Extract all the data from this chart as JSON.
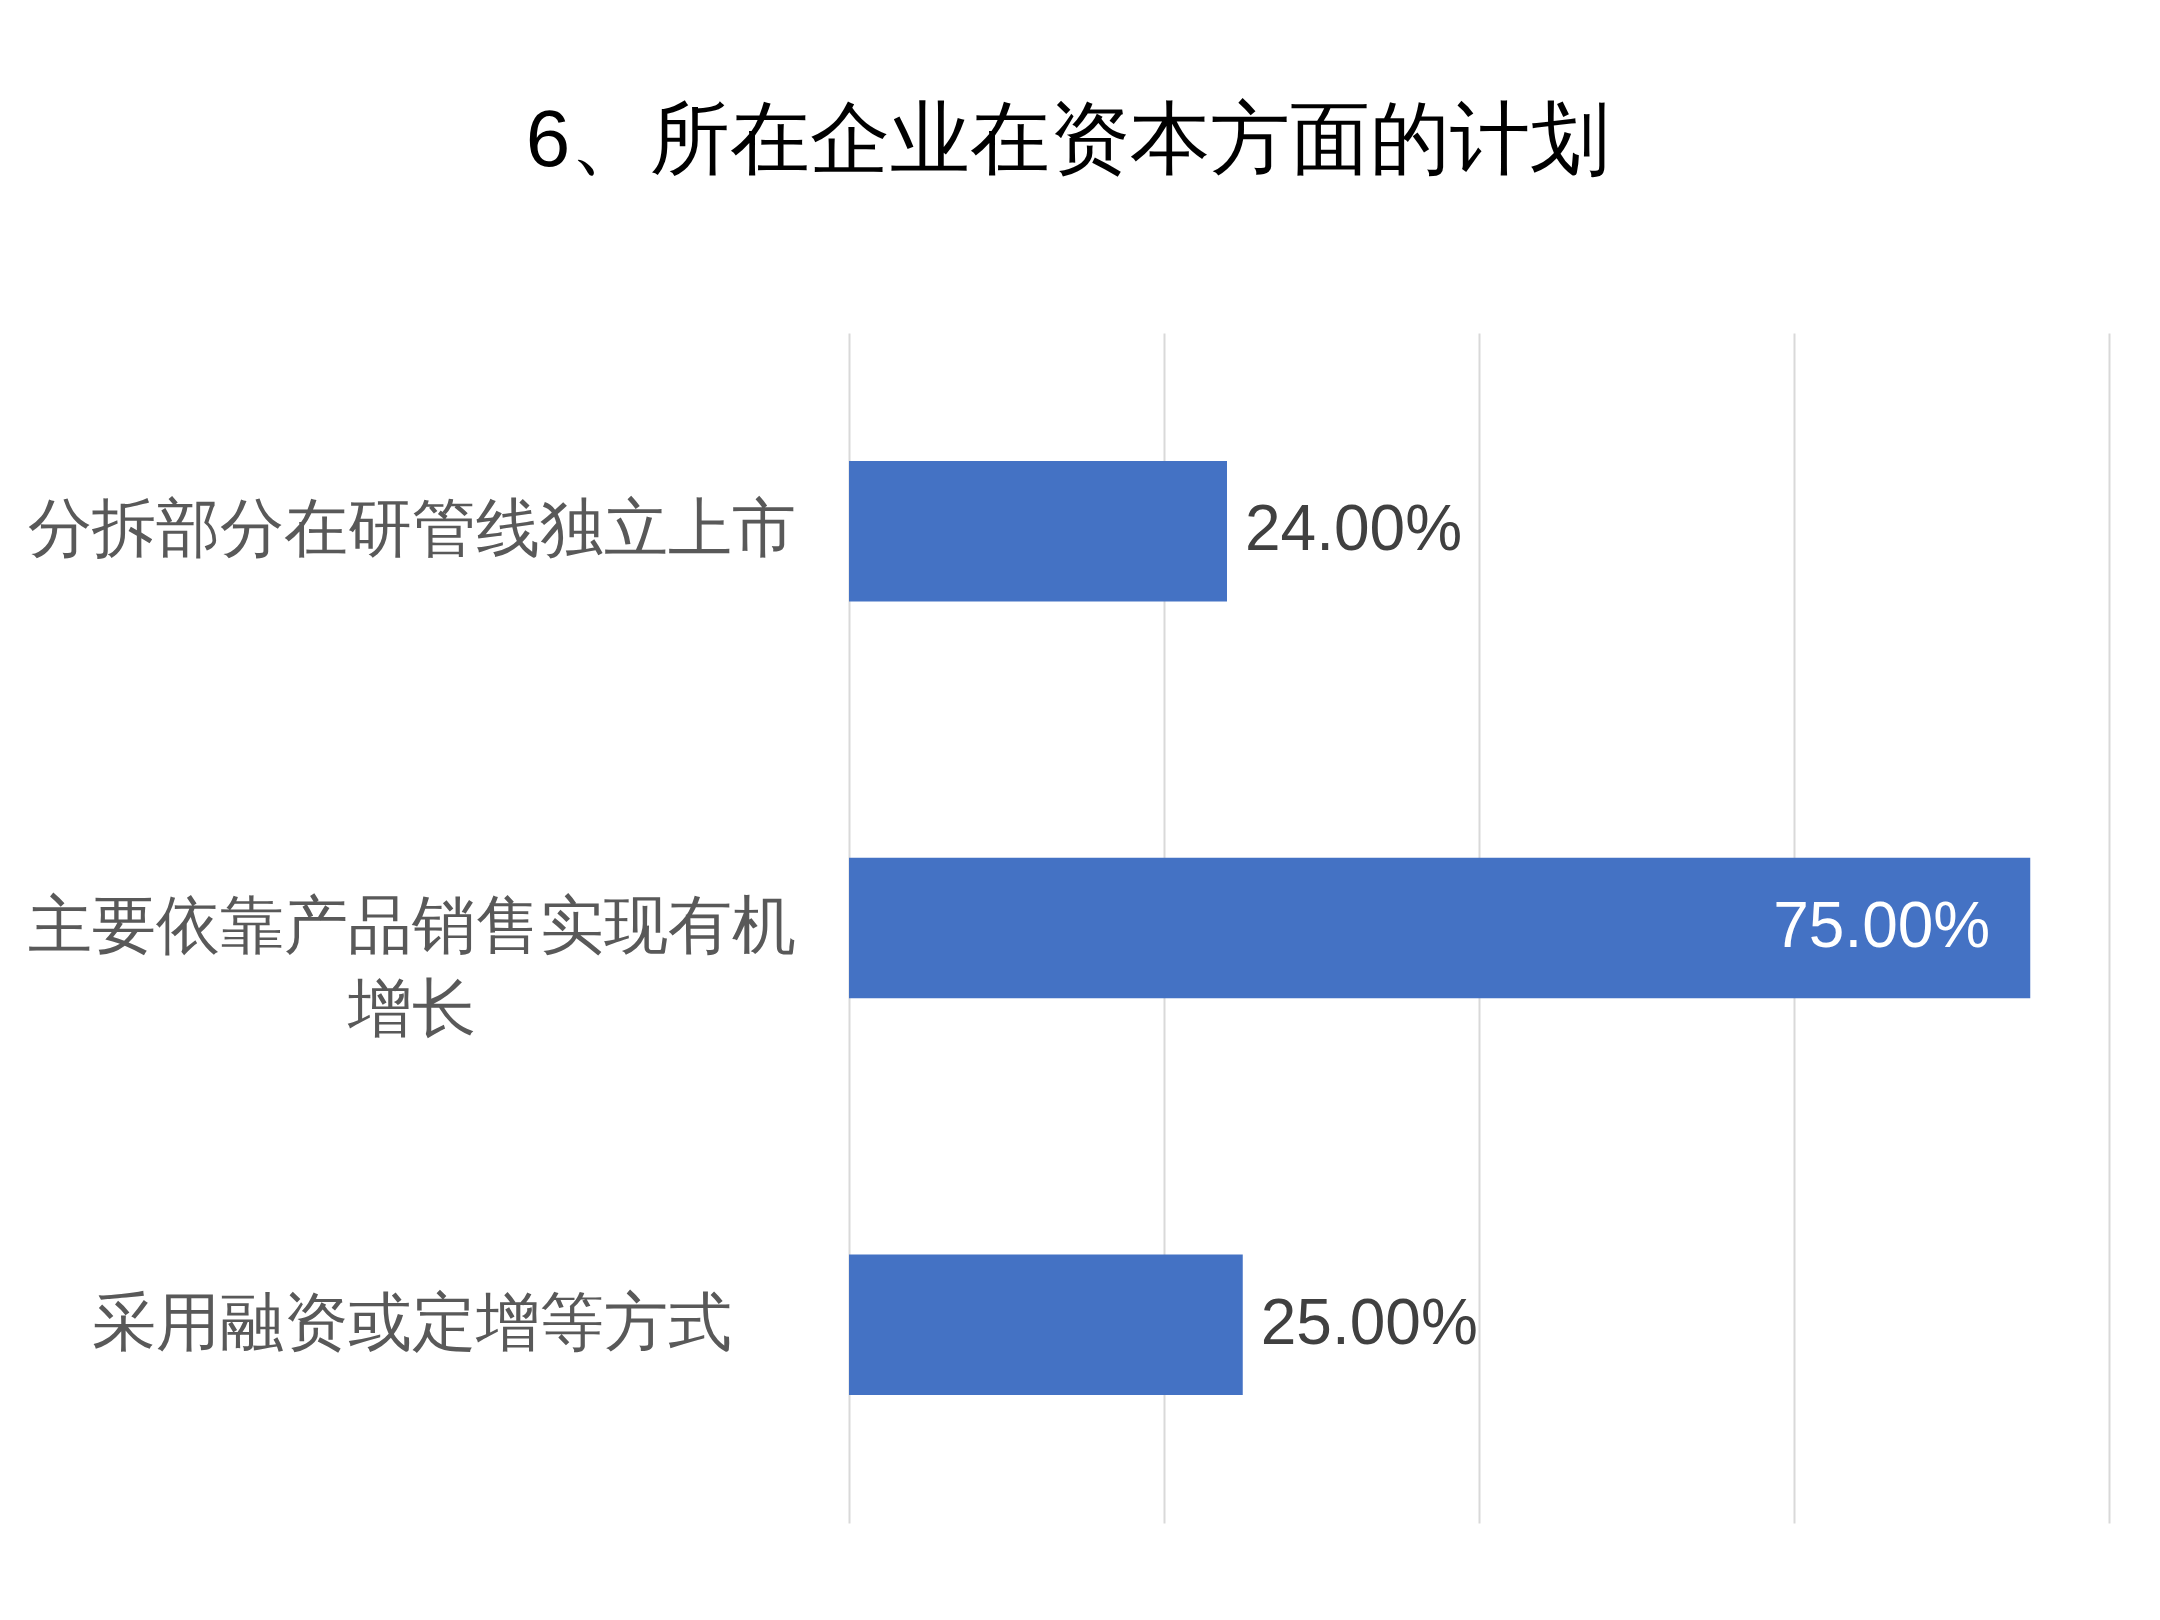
{
  "chart_data": {
    "type": "bar",
    "title": "6、所在企业在资本方面的计划",
    "orientation": "horizontal",
    "categories": [
      "分拆部分在研管线独立上市",
      "主要依靠产品销售实现有机增长",
      "采用融资或定增等方式"
    ],
    "values": [
      24,
      75,
      25
    ],
    "value_labels": [
      "24.00%",
      "75.00%",
      "25.00%"
    ],
    "color": "#4472c4",
    "xlim": [
      0,
      80
    ],
    "xticks": [
      {
        "value": 0,
        "label": null
      },
      {
        "value": 20,
        "label": null
      },
      {
        "value": 40,
        "label": null
      },
      {
        "value": 60,
        "label": null
      },
      {
        "value": 80,
        "label": null
      }
    ],
    "grid": "x",
    "tick_labels": "y"
  }
}
